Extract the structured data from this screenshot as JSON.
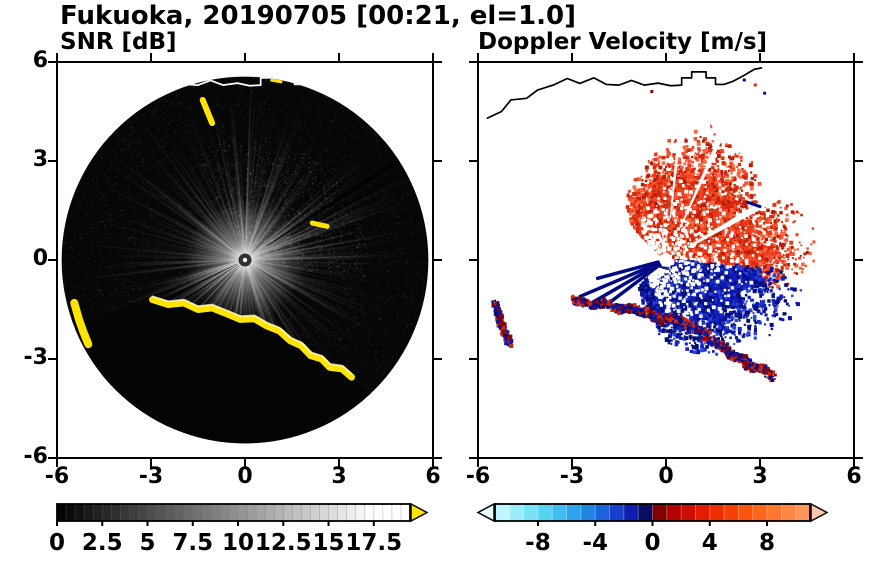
{
  "header": {
    "title": "Fukuoka, 20190705 [00:21, el=1.0]",
    "site": "Fukuoka",
    "date": "20190705",
    "time": "00:21",
    "elevation_deg": 1.0
  },
  "panels": {
    "snr": {
      "title": "SNR [dB]"
    },
    "velocity": {
      "title": "Doppler Velocity [m/s]"
    }
  },
  "geo": {
    "coastline": [
      [
        -5.7,
        4.3
      ],
      [
        -5.25,
        4.5
      ],
      [
        -4.95,
        4.85
      ],
      [
        -4.45,
        4.9
      ],
      [
        -4.1,
        5.15
      ],
      [
        -3.6,
        5.3
      ],
      [
        -3.15,
        5.5
      ],
      [
        -2.75,
        5.35
      ],
      [
        -2.3,
        5.52
      ],
      [
        -1.9,
        5.32
      ],
      [
        -1.5,
        5.3
      ],
      [
        -1.1,
        5.44
      ],
      [
        -0.7,
        5.3
      ],
      [
        -0.25,
        5.36
      ],
      [
        0.15,
        5.28
      ],
      [
        0.5,
        5.3
      ],
      [
        0.5,
        5.52
      ],
      [
        0.82,
        5.52
      ],
      [
        0.82,
        5.7
      ],
      [
        1.28,
        5.7
      ],
      [
        1.28,
        5.52
      ],
      [
        1.58,
        5.52
      ],
      [
        1.58,
        5.32
      ],
      [
        1.85,
        5.32
      ],
      [
        2.15,
        5.42
      ],
      [
        2.5,
        5.6
      ],
      [
        2.82,
        5.78
      ],
      [
        3.05,
        5.82
      ]
    ],
    "clutter_arc": [
      [
        -2.95,
        -1.2
      ],
      [
        -2.45,
        -1.35
      ],
      [
        -1.95,
        -1.3
      ],
      [
        -1.5,
        -1.5
      ],
      [
        -1.05,
        -1.45
      ],
      [
        -0.6,
        -1.62
      ],
      [
        -0.15,
        -1.8
      ],
      [
        0.3,
        -1.78
      ],
      [
        0.7,
        -2.0
      ],
      [
        1.1,
        -2.15
      ],
      [
        1.45,
        -2.45
      ],
      [
        1.8,
        -2.6
      ],
      [
        2.1,
        -2.9
      ],
      [
        2.45,
        -3.0
      ],
      [
        2.7,
        -3.25
      ],
      [
        3.1,
        -3.3
      ],
      [
        3.4,
        -3.55
      ]
    ],
    "side_patch": [
      [
        -5.45,
        -1.3
      ],
      [
        -5.3,
        -1.8
      ],
      [
        -5.15,
        -2.2
      ],
      [
        -5.0,
        -2.55
      ]
    ]
  },
  "chart_data": [
    {
      "id": "snr",
      "type": "heatmap",
      "variant": "radar-ppi-scan",
      "title": "SNR [dB]",
      "summary": "PPI scan of signal-to-noise ratio; mostly low SNR (black) disc of radius ~5.7 with bright radial beams near the radar, a blocked dark sector south of a high-SNR (yellow, >20 dB) ground-clutter coastline arc, small yellow clutter patches north and west, white coastline overlay.",
      "xlim": [
        -6,
        6
      ],
      "ylim": [
        -6,
        6
      ],
      "x_ticks": [
        -6,
        -3,
        0,
        3,
        6
      ],
      "x_tick_labels": [
        "-6",
        "-3",
        "0",
        "3",
        "6"
      ],
      "y_ticks": [
        -6,
        -3,
        0,
        3,
        6
      ],
      "y_tick_labels": [
        "-6",
        "-3",
        "0",
        "3",
        "6"
      ],
      "grid": false,
      "scan_radius": 5.7,
      "colorbar": {
        "range": [
          0,
          19.5
        ],
        "ticks": [
          0,
          2.5,
          5,
          7.5,
          10,
          12.5,
          15,
          17.5
        ],
        "tick_labels": [
          "0",
          "2.5",
          "5",
          "7.5",
          "10",
          "12.5",
          "15",
          "17.5"
        ],
        "cmap": "grayscale black-to-white",
        "over_arrow_color": "#ffe400"
      },
      "features": {
        "bright_center": {
          "radius": 1.9
        },
        "ray_count": 430,
        "bright_rays": [
          {
            "angle": 197,
            "len": 2.8,
            "alpha": 0.5,
            "w": 2.6
          },
          {
            "angle": 204,
            "len": 3.0,
            "alpha": 0.45,
            "w": 2.4
          },
          {
            "angle": 211,
            "len": 2.9,
            "alpha": 0.5,
            "w": 2.6
          },
          {
            "angle": 219,
            "len": 2.7,
            "alpha": 0.4,
            "w": 2.2
          },
          {
            "angle": 226,
            "len": 2.4,
            "alpha": 0.35,
            "w": 2.0
          },
          {
            "angle": 233,
            "len": 2.2,
            "alpha": 0.3,
            "w": 1.8
          },
          {
            "angle": 88,
            "len": 5.6,
            "alpha": 0.3,
            "w": 1.6
          },
          {
            "angle": 95,
            "len": 5.4,
            "alpha": 0.26,
            "w": 1.5
          },
          {
            "angle": 102,
            "len": 5.2,
            "alpha": 0.22,
            "w": 1.5
          },
          {
            "angle": 70,
            "len": 5.0,
            "alpha": 0.2,
            "w": 1.4
          },
          {
            "angle": 55,
            "len": 4.6,
            "alpha": 0.18,
            "w": 1.3
          },
          {
            "angle": 40,
            "len": 5.2,
            "alpha": 0.24,
            "w": 1.4
          },
          {
            "angle": 24,
            "len": 4.6,
            "alpha": 0.2,
            "w": 1.3
          },
          {
            "angle": 10,
            "len": 5.3,
            "alpha": 0.22,
            "w": 1.4
          },
          {
            "angle": 2,
            "len": 4.8,
            "alpha": 0.2,
            "w": 1.3
          },
          {
            "angle": 352,
            "len": 4.2,
            "alpha": 0.16,
            "w": 1.2
          },
          {
            "angle": 152,
            "len": 5.0,
            "alpha": 0.2,
            "w": 1.4
          },
          {
            "angle": 141,
            "len": 4.4,
            "alpha": 0.16,
            "w": 1.3
          },
          {
            "angle": 165,
            "len": 4.7,
            "alpha": 0.18,
            "w": 1.3
          },
          {
            "angle": 178,
            "len": 4.3,
            "alpha": 0.16,
            "w": 1.3
          },
          {
            "angle": 120,
            "len": 4.2,
            "alpha": 0.15,
            "w": 1.2
          }
        ],
        "precip_speckle": {
          "theta": [
            -10,
            115
          ],
          "r": [
            0.4,
            3.8
          ],
          "n": 900
        },
        "dark_rays": [
          {
            "angle": 33,
            "width": 1.4,
            "r0": 0.8,
            "r1": 5.75
          },
          {
            "angle": 28.5,
            "width": 0.7,
            "r0": 1.6,
            "r1": 5.75
          },
          {
            "angle": 206,
            "width": 1.5,
            "r0": 0.25,
            "r1": 2.9
          },
          {
            "angle": 213,
            "width": 1.3,
            "r0": 0.25,
            "r1": 2.8
          },
          {
            "angle": 221,
            "width": 1.2,
            "r0": 0.25,
            "r1": 2.6
          },
          {
            "angle": 228,
            "width": 1.0,
            "r0": 0.25,
            "r1": 2.4
          }
        ],
        "clutter_color": "#ffe400",
        "clutter_patches": [
          {
            "pts": [
              [
                -1.35,
                4.85
              ],
              [
                -1.2,
                4.5
              ],
              [
                -1.05,
                4.15
              ]
            ],
            "lw": 6
          },
          {
            "pts": [
              [
                2.15,
                1.12
              ],
              [
                2.62,
                1.02
              ]
            ],
            "lw": 5
          },
          {
            "pts": [
              [
                -5.45,
                -1.3
              ],
              [
                -5.3,
                -1.8
              ],
              [
                -5.15,
                -2.2
              ],
              [
                -5.0,
                -2.55
              ]
            ],
            "lw": 8
          },
          {
            "pts": [
              [
                0.85,
                5.45
              ],
              [
                1.15,
                5.4
              ]
            ],
            "lw": 3
          }
        ],
        "coastline_color": "#ffffff"
      }
    },
    {
      "id": "velocity",
      "type": "heatmap",
      "variant": "radar-ppi-scan",
      "title": "Doppler Velocity [m/s]",
      "summary": "PPI scan of Doppler velocity; broad fan of positive (receding, red/orange ~+4 m/s) velocities north-east of the radar and negative (approaching, blue/navy ~-4 m/s) velocities to the south-southeast, with white shadowed wedges, navy streaks toward WSW, mixed red/navy ground-clutter along the coastline arc, black coastline overlay on white background.",
      "xlim": [
        -6,
        6
      ],
      "ylim": [
        -6,
        6
      ],
      "x_ticks": [
        -6,
        -3,
        0,
        3,
        6
      ],
      "x_tick_labels": [
        "-6",
        "-3",
        "0",
        "3",
        "6"
      ],
      "y_ticks": [
        -6,
        -3,
        0,
        3,
        6
      ],
      "y_tick_labels": [
        "-6",
        "-3",
        "0",
        "3",
        "6"
      ],
      "grid": false,
      "colorbar": {
        "range": [
          -11,
          11
        ],
        "segments": 22,
        "ticks": [
          -8,
          -4,
          0,
          4,
          8
        ],
        "tick_labels": [
          "-8",
          "-4",
          "0",
          "4",
          "8"
        ],
        "cmap": "cyan-blue-navy | darkred-red-orange",
        "cmap_stops": [
          [
            -11,
            "#d2faff"
          ],
          [
            -9,
            "#8ae8fa"
          ],
          [
            -7,
            "#46ccf2"
          ],
          [
            -5,
            "#2496e8"
          ],
          [
            -3,
            "#1b50d8"
          ],
          [
            -1.5,
            "#0f1eb0"
          ],
          [
            -0.05,
            "#04063e"
          ],
          [
            0.05,
            "#6e0000"
          ],
          [
            1.5,
            "#b40000"
          ],
          [
            3,
            "#dc1400"
          ],
          [
            5,
            "#f23800"
          ],
          [
            7,
            "#ff5c14"
          ],
          [
            9,
            "#ff7e3c"
          ],
          [
            11,
            "#ff9e64"
          ]
        ],
        "under_arrow_color": "#e6feff",
        "over_arrow_color": "#ffc8ae"
      },
      "features": {
        "receding_fan": {
          "sign": "positive (away from radar)",
          "mean_velocity_mps": 4,
          "theta_range": [
            -15,
            135
          ],
          "rmax_anchors": [
            [
              -15,
              3.4
            ],
            [
              0,
              4.3
            ],
            [
              20,
              4.0
            ],
            [
              35,
              3.4
            ],
            [
              50,
              3.6
            ],
            [
              70,
              4.0
            ],
            [
              90,
              3.3
            ],
            [
              105,
              2.6
            ],
            [
              120,
              2.1
            ],
            [
              135,
              1.4
            ]
          ],
          "core_colors": [
            "#ee4120"
          ],
          "speckle_colors": [
            "#d42808",
            "#f25030",
            "#b81c04",
            "#ff6a40",
            "#e83818"
          ],
          "speckle_count": 3200,
          "hole_count": 430
        },
        "approaching_fan": {
          "sign": "negative (toward radar)",
          "mean_velocity_mps": -4,
          "theta_range": [
            -135,
            -4
          ],
          "rmax_anchors": [
            [
              -135,
              1.1
            ],
            [
              -110,
              1.5
            ],
            [
              -90,
              2.3
            ],
            [
              -70,
              2.8
            ],
            [
              -50,
              3.2
            ],
            [
              -30,
              3.7
            ],
            [
              -15,
              4.0
            ],
            [
              -4,
              3.5
            ]
          ],
          "core_colors": [
            "#101cb0"
          ],
          "speckle_colors": [
            "#000a82",
            "#1428c8",
            "#2a44e0",
            "#060e6e",
            "#0a18aa"
          ],
          "speckle_count": 2300,
          "hole_count": 300
        },
        "shadow_wedges": [
          {
            "angle": 30,
            "width": 4,
            "r0": 0.8,
            "r1": 4.6
          },
          {
            "angle": 66,
            "width": 2,
            "r0": 1.1,
            "r1": 4.3
          },
          {
            "angle": 84,
            "width": 1.6,
            "r0": 1.3,
            "r1": 4.1
          }
        ],
        "streaks": [
          {
            "angle": 195,
            "r1": 2.2
          },
          {
            "angle": 203,
            "r1": 2.9
          },
          {
            "angle": 210,
            "r1": 2.7
          },
          {
            "angle": 217,
            "r1": 2.2
          }
        ],
        "streak_color": "#000a82",
        "clutter_mix_colors": [
          "#000a82",
          "#d42808",
          "#0a18aa",
          "#8c0000"
        ],
        "navy_dash": [
          [
            2.6,
            1.75
          ],
          [
            3.0,
            1.62
          ]
        ],
        "coast_specks": [
          [
            2.45,
            5.5
          ],
          [
            2.8,
            5.35
          ],
          [
            3.1,
            5.1
          ],
          [
            -0.5,
            5.15
          ]
        ],
        "center_hole_radius": 0.2,
        "coastline_color": "#000000"
      }
    }
  ]
}
